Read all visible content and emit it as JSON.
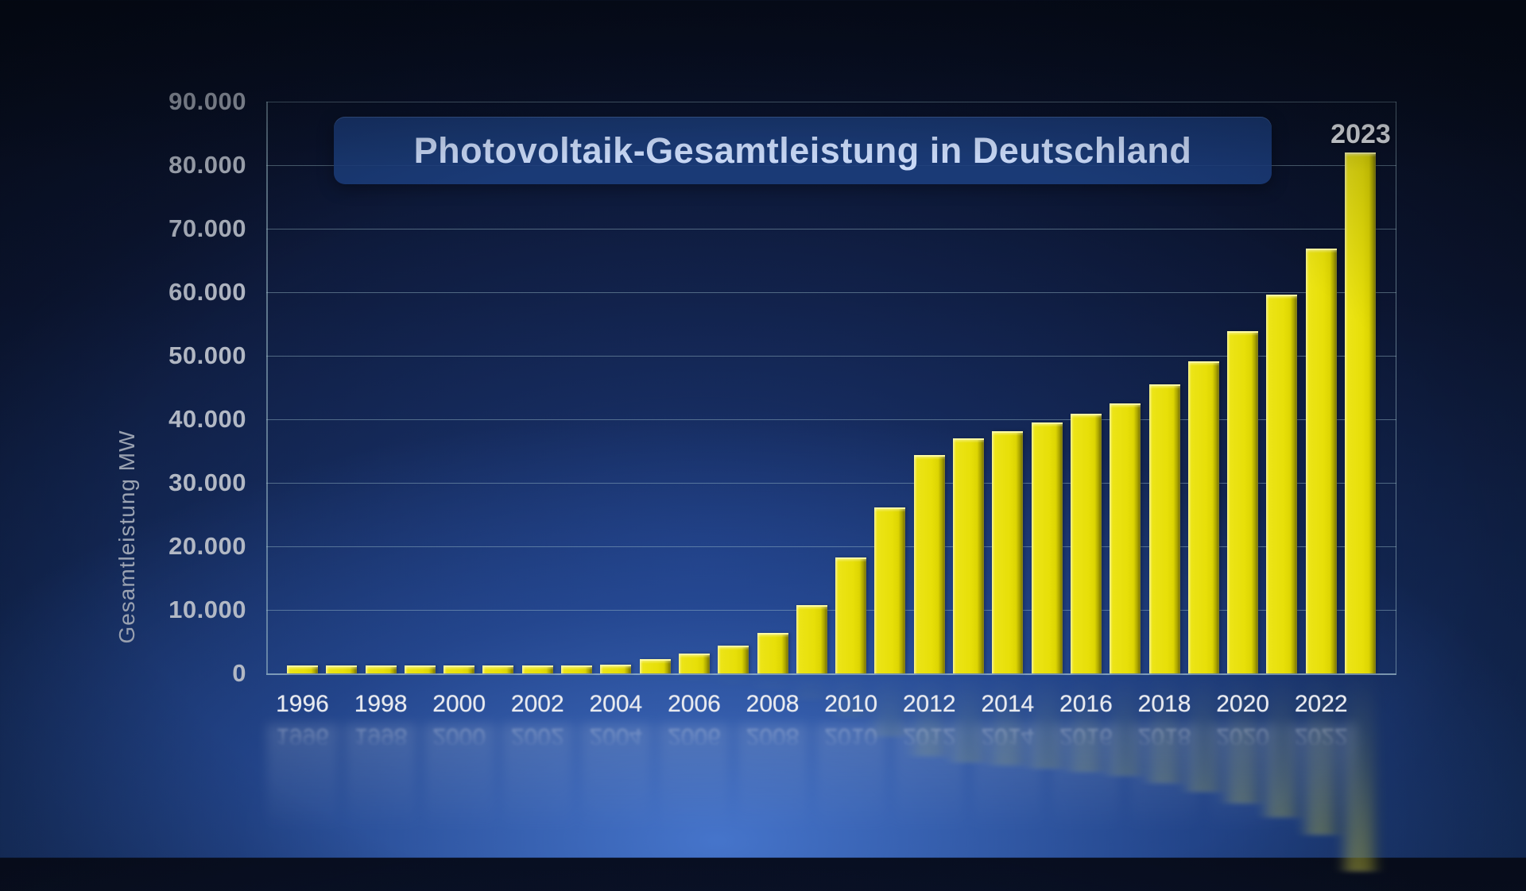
{
  "title": {
    "text": "Photovoltaik-Gesamtleistung in Deutschland"
  },
  "annotation": {
    "text": "2023"
  },
  "y_axis": {
    "title": "Gesamtleistung MW",
    "tick_labels": [
      "90.000",
      "80.000",
      "70.000",
      "60.000",
      "50.000",
      "40.000",
      "30.000",
      "20.000",
      "10.000",
      "0"
    ]
  },
  "x_axis": {
    "tick_labels": [
      "1996",
      "1998",
      "2000",
      "2002",
      "2004",
      "2006",
      "2008",
      "2010",
      "2012",
      "2014",
      "2016",
      "2018",
      "2020",
      "2022"
    ]
  },
  "colors": {
    "bar": "#e8e00a",
    "bar_highlight": "#f8f389",
    "bar_shadow": "#6f6a00",
    "grid": "#a0c0cb",
    "y_label": "#b2b8c4",
    "x_label": "#e8eaef",
    "title_text": "#ccdcfa",
    "title_box": "#1c3e7d",
    "annotation_text": "#eef1f5",
    "background_deep": "#070c1a",
    "background_glow": "#4878d0"
  },
  "chart_data": {
    "type": "bar",
    "title": "Photovoltaik-Gesamtleistung in Deutschland",
    "xlabel": "",
    "ylabel": "Gesamtleistung MW",
    "ylim": [
      0,
      90000
    ],
    "grid_step": 10000,
    "legend": "none",
    "annotated_year": 2023,
    "x": [
      1996,
      1997,
      1998,
      1999,
      2000,
      2001,
      2002,
      2003,
      2004,
      2005,
      2006,
      2007,
      2008,
      2009,
      2010,
      2011,
      2012,
      2013,
      2014,
      2015,
      2016,
      2017,
      2018,
      2019,
      2020,
      2021,
      2022,
      2023
    ],
    "values": [
      28,
      42,
      54,
      70,
      114,
      176,
      296,
      435,
      1105,
      2056,
      2899,
      4170,
      6120,
      10566,
      18006,
      25916,
      34077,
      36710,
      37900,
      39224,
      40679,
      42293,
      45277,
      48864,
      53669,
      59371,
      66662,
      81737
    ]
  }
}
